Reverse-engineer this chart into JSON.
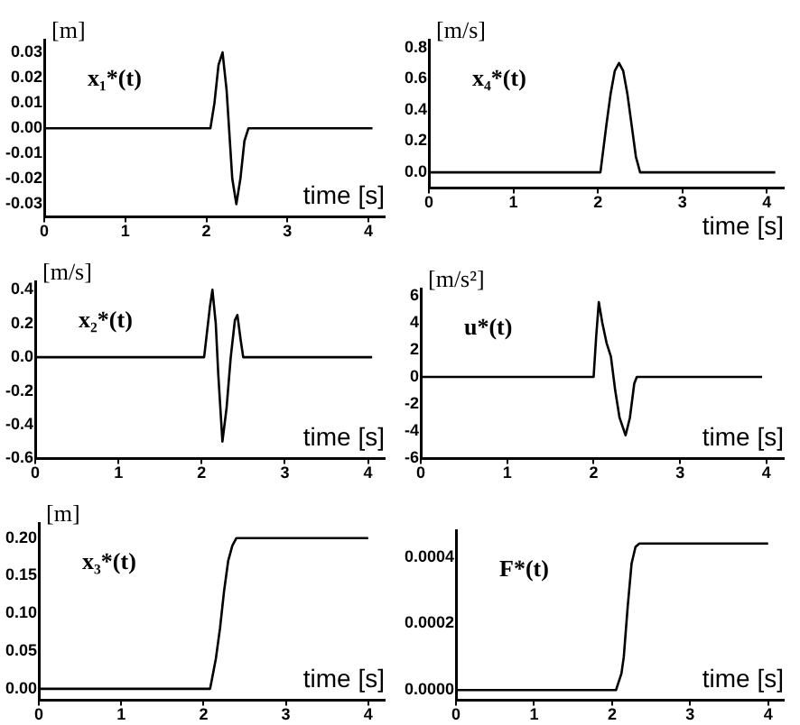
{
  "chart_data": [
    {
      "type": "line",
      "ylabel": "[m]",
      "xlabel": "time [s]",
      "annotations": [
        "x₁*(t)"
      ],
      "x": [
        0,
        2.05,
        2.1,
        2.15,
        2.2,
        2.25,
        2.28,
        2.32,
        2.37,
        2.42,
        2.47,
        2.52,
        4.05
      ],
      "series": [
        {
          "color": "#000000",
          "values": [
            0,
            0,
            0.01,
            0.025,
            0.03,
            0.015,
            0,
            -0.02,
            -0.03,
            -0.02,
            -0.005,
            0,
            0
          ]
        }
      ],
      "xlim": [
        0,
        4.2
      ],
      "xticks": [
        0,
        1,
        2,
        3,
        4
      ],
      "ylim": [
        -0.035,
        0.035
      ],
      "yticks": [
        -0.03,
        -0.02,
        -0.01,
        {
          "value": 0,
          "label": "0.00"
        },
        0.01,
        0.02,
        0.03
      ],
      "grid": false,
      "legend": false,
      "marker": "none"
    },
    {
      "type": "line",
      "ylabel": "[m/s]",
      "xlabel": "time [s]",
      "annotations": [
        "x₄*(t)"
      ],
      "x": [
        0,
        2.03,
        2.1,
        2.15,
        2.2,
        2.25,
        2.3,
        2.35,
        2.4,
        2.45,
        2.5,
        4.1
      ],
      "series": [
        {
          "color": "#000000",
          "values": [
            0,
            0,
            0.3,
            0.5,
            0.65,
            0.7,
            0.65,
            0.5,
            0.3,
            0.1,
            0,
            0
          ]
        }
      ],
      "xlim": [
        0,
        4.2
      ],
      "xticks": [
        0,
        1,
        2,
        3,
        4
      ],
      "ylim": [
        -0.1,
        0.85
      ],
      "yticks": [
        {
          "value": 0,
          "label": "0.0"
        },
        0.2,
        0.4,
        0.6,
        0.8
      ],
      "grid": false,
      "legend": false,
      "marker": "none"
    },
    {
      "type": "line",
      "ylabel": "[m/s]",
      "xlabel": "time [s]",
      "annotations": [
        "x₂*(t)"
      ],
      "x": [
        0,
        2.03,
        2.1,
        2.13,
        2.17,
        2.2,
        2.25,
        2.3,
        2.35,
        2.4,
        2.43,
        2.47,
        2.5,
        4.05
      ],
      "series": [
        {
          "color": "#000000",
          "values": [
            0,
            0,
            0.3,
            0.4,
            0.2,
            -0.1,
            -0.5,
            -0.3,
            0,
            0.22,
            0.25,
            0.1,
            0,
            0
          ]
        }
      ],
      "xlim": [
        0,
        4.2
      ],
      "xticks": [
        0,
        1,
        2,
        3,
        4
      ],
      "ylim": [
        -0.6,
        0.45
      ],
      "yticks": [
        -0.6,
        -0.4,
        -0.2,
        {
          "value": 0,
          "label": "0.0"
        },
        0.2,
        0.4
      ],
      "grid": false,
      "legend": false,
      "marker": "none"
    },
    {
      "type": "line",
      "ylabel": "[m/s²]",
      "xlabel": "time [s]",
      "annotations": [
        "u*(t)"
      ],
      "x": [
        0,
        2.0,
        2.03,
        2.06,
        2.1,
        2.15,
        2.2,
        2.25,
        2.3,
        2.37,
        2.42,
        2.47,
        2.5,
        3.95
      ],
      "series": [
        {
          "color": "#000000",
          "values": [
            0,
            0,
            3,
            5.5,
            4,
            2.5,
            1.5,
            -1,
            -3,
            -4.3,
            -3,
            -0.5,
            0,
            0
          ]
        }
      ],
      "xlim": [
        0,
        4.2
      ],
      "xticks": [
        0,
        1,
        2,
        3,
        4
      ],
      "ylim": [
        -6,
        6.5
      ],
      "yticks": [
        -6,
        -4,
        -2,
        0,
        2,
        4,
        6
      ],
      "grid": false,
      "legend": false,
      "marker": "none"
    },
    {
      "type": "line",
      "ylabel": "[m]",
      "xlabel": "time [s]",
      "annotations": [
        "x₃*(t)"
      ],
      "x": [
        0,
        2.08,
        2.15,
        2.2,
        2.25,
        2.3,
        2.35,
        2.4,
        2.5,
        4.0
      ],
      "series": [
        {
          "color": "#000000",
          "values": [
            0,
            0,
            0.04,
            0.08,
            0.13,
            0.17,
            0.19,
            0.2,
            0.2,
            0.2
          ]
        }
      ],
      "xlim": [
        0,
        4.2
      ],
      "xticks": [
        0,
        1,
        2,
        3,
        4
      ],
      "ylim": [
        -0.015,
        0.22
      ],
      "yticks": [
        {
          "value": 0,
          "label": "0.00"
        },
        0.05,
        {
          "value": 0.1,
          "label": "0.10"
        },
        0.15,
        {
          "value": 0.2,
          "label": "0.20"
        }
      ],
      "grid": false,
      "legend": false,
      "marker": "none"
    },
    {
      "type": "line",
      "xlabel": "time [s]",
      "annotations": [
        "F*(t)"
      ],
      "x": [
        0,
        2.05,
        2.12,
        2.15,
        2.2,
        2.25,
        2.3,
        2.35,
        4.0
      ],
      "series": [
        {
          "color": "#000000",
          "values": [
            0,
            0,
            5e-05,
            0.0001,
            0.00025,
            0.00038,
            0.00043,
            0.00044,
            0.00044
          ]
        }
      ],
      "xlim": [
        0,
        4.2
      ],
      "xticks": [
        0,
        1,
        2,
        3,
        4
      ],
      "ylim": [
        -3e-05,
        0.00048
      ],
      "yticks": [
        {
          "value": 0,
          "label": "0.0000"
        },
        {
          "value": 0.0002,
          "label": "0.0002"
        },
        {
          "value": 0.0004,
          "label": "0.0004"
        }
      ],
      "grid": false,
      "legend": false,
      "marker": "none"
    }
  ]
}
